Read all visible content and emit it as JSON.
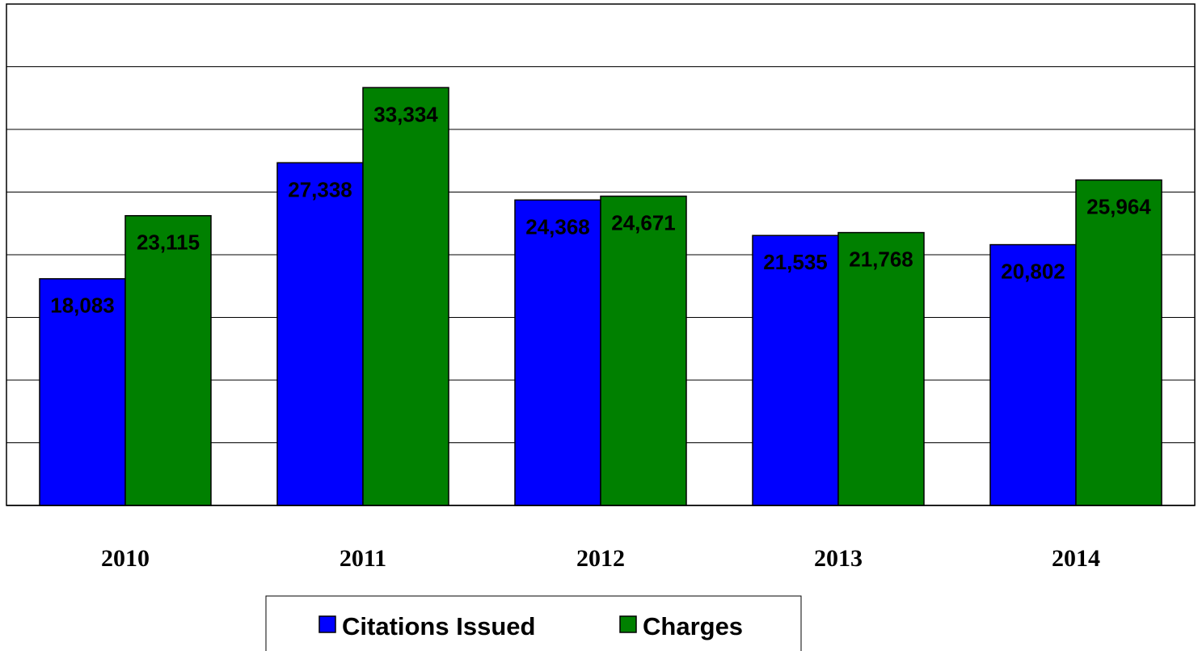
{
  "chart_data": {
    "type": "bar",
    "title": "",
    "xlabel": "",
    "ylabel": "",
    "categories": [
      "2010",
      "2011",
      "2012",
      "2013",
      "2014"
    ],
    "series": [
      {
        "name": "Citations Issued",
        "color": "#0000FF",
        "values": [
          18083,
          27338,
          24368,
          21535,
          20802
        ],
        "labels": [
          "18,083",
          "27,338",
          "24,368",
          "21,535",
          "20,802"
        ]
      },
      {
        "name": "Charges",
        "color": "#008000",
        "values": [
          23115,
          33334,
          24671,
          21768,
          25964
        ],
        "labels": [
          "23,115",
          "33,334",
          "24,671",
          "21,768",
          "25,964"
        ]
      }
    ],
    "ylim": [
      0,
      40000
    ],
    "y_gridline_step": 5000,
    "y_tick_labels_shown": false,
    "grid": true,
    "legend_position": "bottom-center"
  }
}
